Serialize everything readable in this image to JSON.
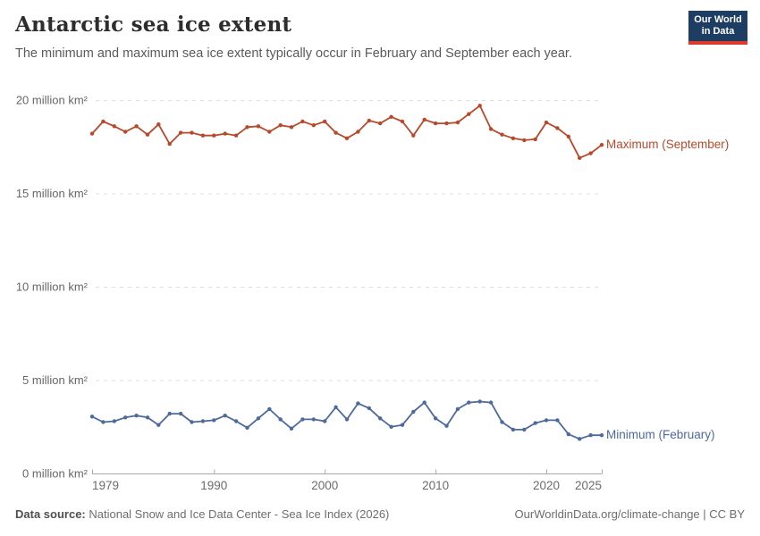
{
  "header": {
    "title": "Antarctic sea ice extent",
    "subtitle": "The minimum and maximum sea ice extent typically occur in February and September each year.",
    "logo": {
      "line1": "Our World",
      "line2": "in Data"
    }
  },
  "footer": {
    "source_label": "Data source:",
    "source_text": " National Snow and Ice Data Center - Sea Ice Index (2026)",
    "credit": "OurWorldinData.org/climate-change | CC BY"
  },
  "colors": {
    "max_series": "#b5492a",
    "min_series": "#4c6a9c",
    "grid": "#dedede",
    "axis": "#a9a9a9",
    "logo_bg": "#1d3d63",
    "logo_accent": "#dc3a2a"
  },
  "chart_data": {
    "type": "line",
    "title": "Antarctic sea ice extent",
    "xlabel": "",
    "ylabel": "million km²",
    "xlim": [
      1979,
      2025
    ],
    "ylim": [
      0,
      20
    ],
    "x_ticks": [
      1979,
      1990,
      2000,
      2010,
      2020,
      2025
    ],
    "y_ticks": [
      0,
      5,
      10,
      15,
      20
    ],
    "y_tick_label_suffix": " million km²",
    "grid": "horizontal dashed",
    "legend_position": "labels at line ends, right side",
    "x": [
      1979,
      1980,
      1981,
      1982,
      1983,
      1984,
      1985,
      1986,
      1987,
      1988,
      1989,
      1990,
      1991,
      1992,
      1993,
      1994,
      1995,
      1996,
      1997,
      1998,
      1999,
      2000,
      2001,
      2002,
      2003,
      2004,
      2005,
      2006,
      2007,
      2008,
      2009,
      2010,
      2011,
      2012,
      2013,
      2014,
      2015,
      2016,
      2017,
      2018,
      2019,
      2020,
      2021,
      2022,
      2023,
      2024,
      2025
    ],
    "series": [
      {
        "name": "Maximum (September)",
        "color": "#b5492a",
        "values": [
          18.2,
          18.85,
          18.6,
          18.3,
          18.6,
          18.15,
          18.7,
          17.65,
          18.25,
          18.25,
          18.1,
          18.1,
          18.2,
          18.1,
          18.55,
          18.6,
          18.3,
          18.65,
          18.55,
          18.85,
          18.65,
          18.85,
          18.25,
          17.95,
          18.3,
          18.9,
          18.75,
          19.1,
          18.85,
          18.1,
          18.95,
          18.75,
          18.75,
          18.8,
          19.25,
          19.7,
          18.45,
          18.15,
          17.95,
          17.85,
          17.9,
          18.8,
          18.5,
          18.05,
          16.9,
          17.15,
          17.6
        ]
      },
      {
        "name": "Minimum (February)",
        "color": "#4c6a9c",
        "values": [
          3.05,
          2.75,
          2.8,
          3.0,
          3.1,
          3.0,
          2.6,
          3.2,
          3.2,
          2.75,
          2.8,
          2.85,
          3.1,
          2.8,
          2.45,
          2.95,
          3.45,
          2.9,
          2.4,
          2.9,
          2.9,
          2.8,
          3.55,
          2.9,
          3.75,
          3.5,
          2.95,
          2.5,
          2.6,
          3.3,
          3.8,
          2.95,
          2.55,
          3.45,
          3.8,
          3.85,
          3.8,
          2.75,
          2.35,
          2.35,
          2.7,
          2.85,
          2.85,
          2.1,
          1.85,
          2.05,
          2.05
        ]
      }
    ]
  }
}
